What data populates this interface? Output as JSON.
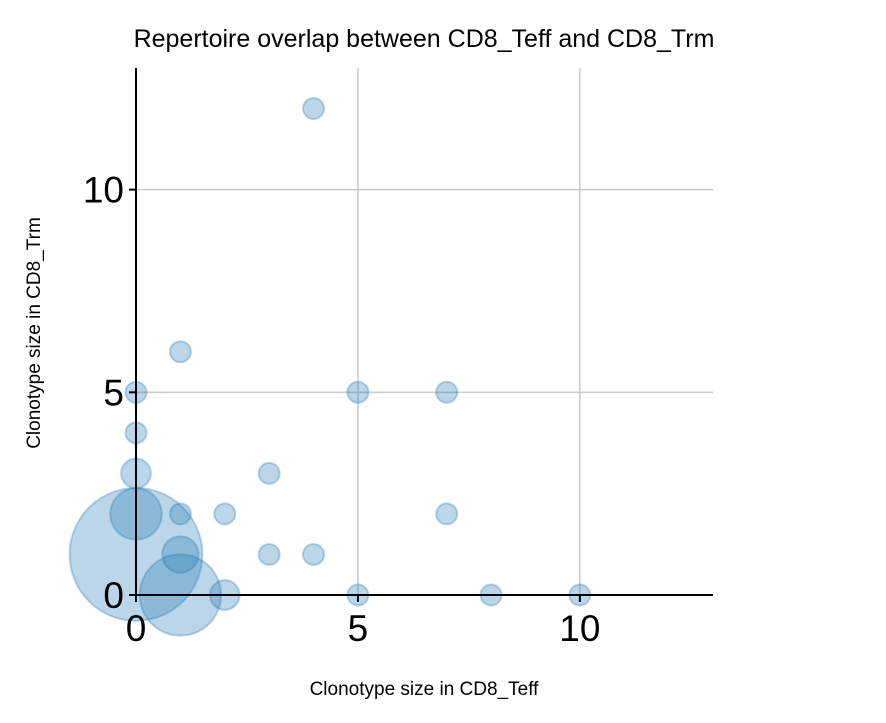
{
  "chart_data": {
    "type": "scatter",
    "title": "Repertoire overlap between CD8_Teff and CD8_Trm",
    "xlabel": "Clonotype size in CD8_Teff",
    "ylabel": "Clonotype size in CD8_Trm",
    "xlim": [
      0,
      13
    ],
    "ylim": [
      0,
      13
    ],
    "xticks": [
      0,
      5,
      10
    ],
    "yticks": [
      0,
      5,
      10
    ],
    "grid": true,
    "color": "#1f77b4",
    "points": [
      {
        "x": 4,
        "y": 12,
        "count": 1
      },
      {
        "x": 1,
        "y": 6,
        "count": 1
      },
      {
        "x": 0,
        "y": 5,
        "count": 1
      },
      {
        "x": 5,
        "y": 5,
        "count": 1
      },
      {
        "x": 7,
        "y": 5,
        "count": 1
      },
      {
        "x": 0,
        "y": 4,
        "count": 1
      },
      {
        "x": 0,
        "y": 3,
        "count": 2
      },
      {
        "x": 3,
        "y": 3,
        "count": 1
      },
      {
        "x": 0,
        "y": 2,
        "count": 6
      },
      {
        "x": 1,
        "y": 2,
        "count": 1
      },
      {
        "x": 2,
        "y": 2,
        "count": 1
      },
      {
        "x": 7,
        "y": 2,
        "count": 1
      },
      {
        "x": 0,
        "y": 1,
        "count": 40
      },
      {
        "x": 1,
        "y": 1,
        "count": 3
      },
      {
        "x": 3,
        "y": 1,
        "count": 1
      },
      {
        "x": 4,
        "y": 1,
        "count": 1
      },
      {
        "x": 1,
        "y": 0,
        "count": 15
      },
      {
        "x": 2,
        "y": 0,
        "count": 2
      },
      {
        "x": 5,
        "y": 0,
        "count": 1
      },
      {
        "x": 8,
        "y": 0,
        "count": 1
      },
      {
        "x": 10,
        "y": 0,
        "count": 1
      }
    ]
  }
}
